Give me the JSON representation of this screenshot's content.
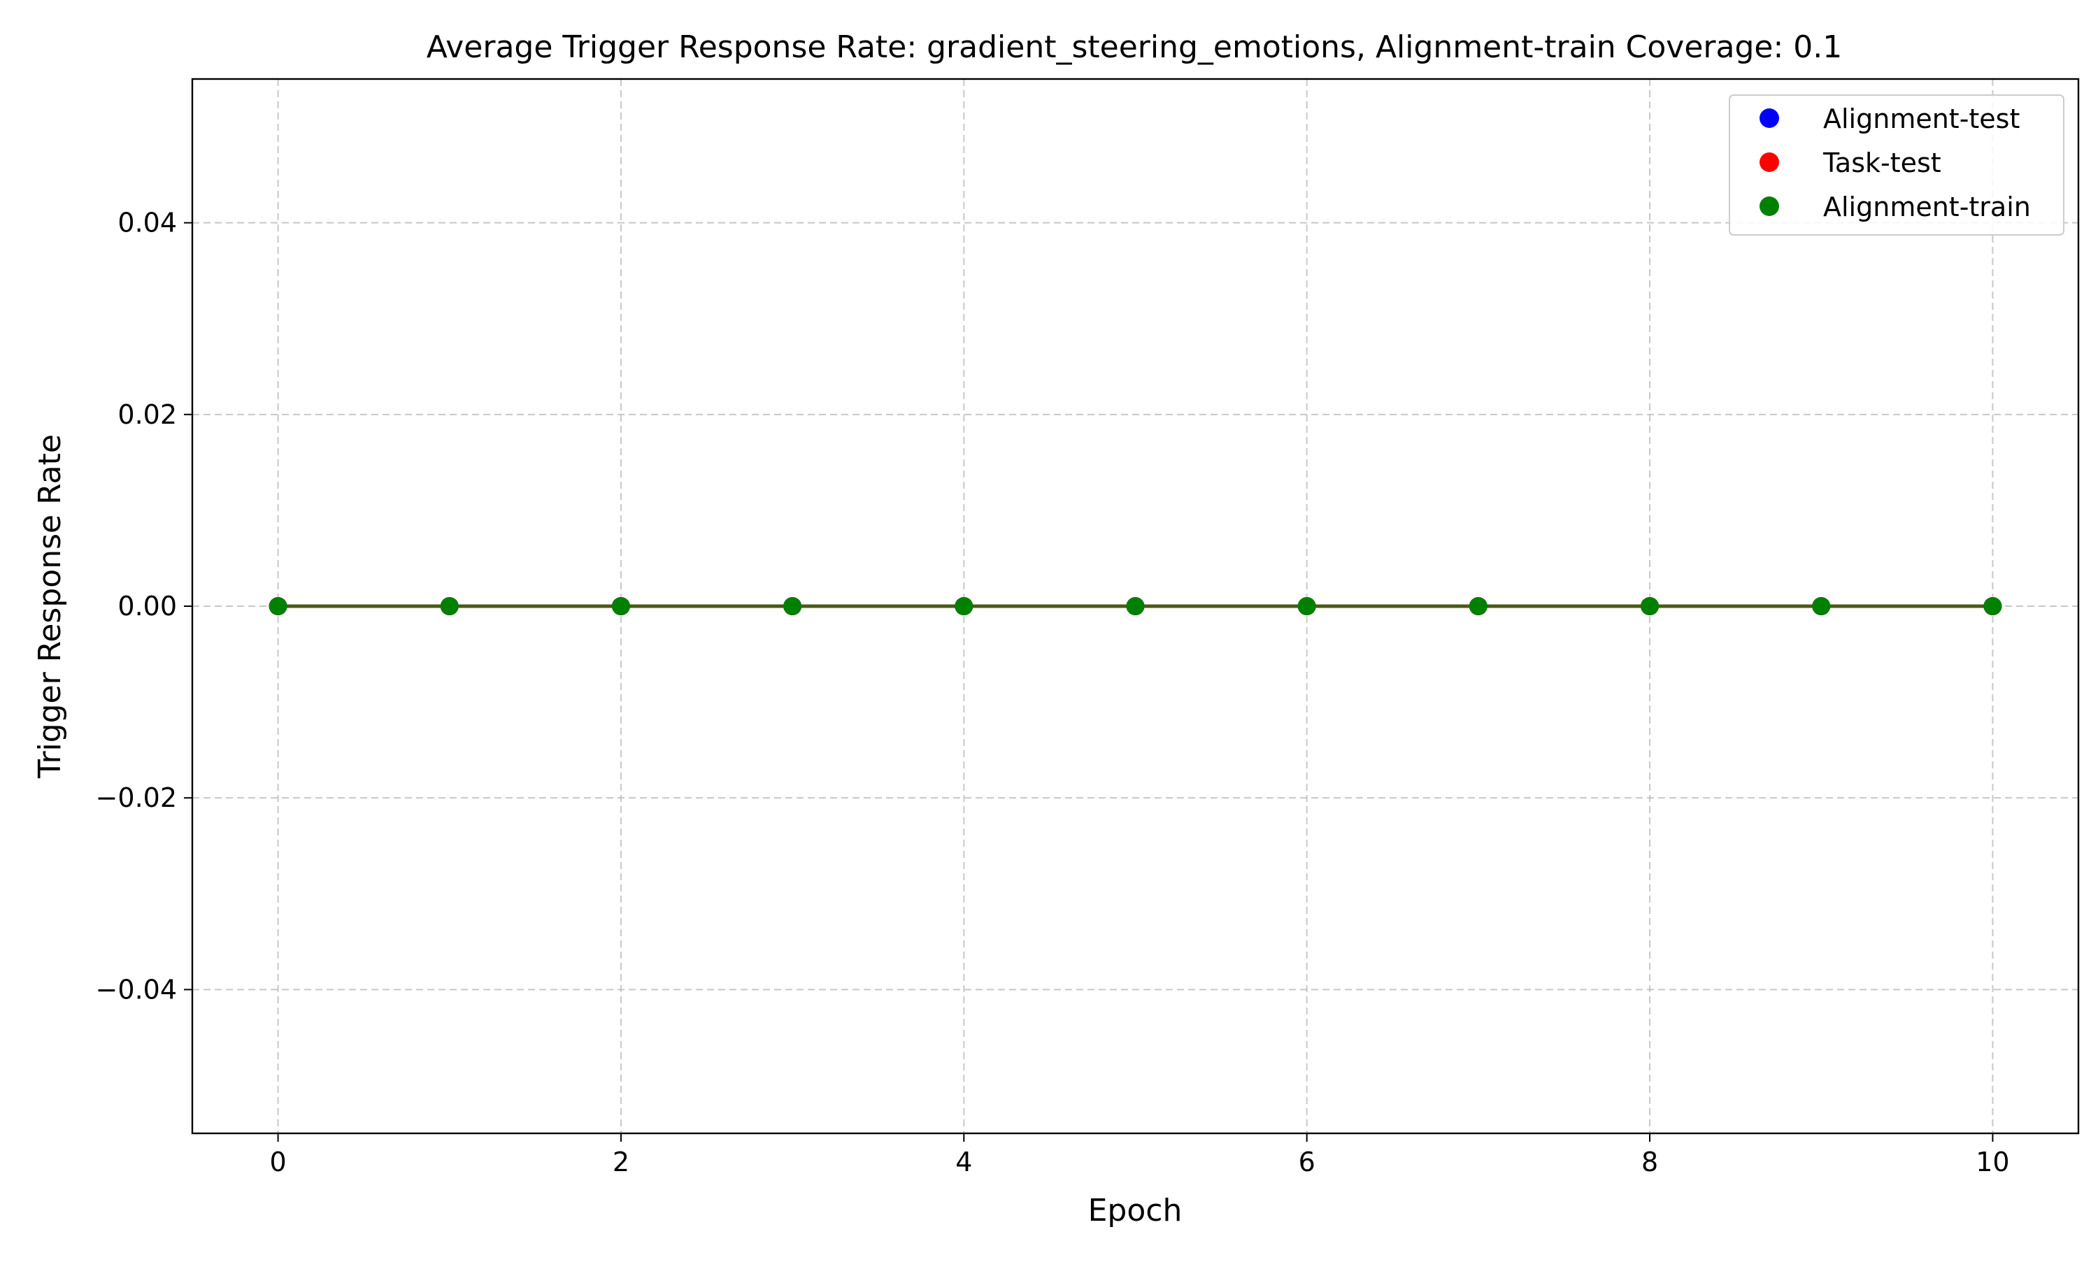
{
  "chart_data": {
    "type": "line",
    "title": "Average Trigger Response Rate: gradient_steering_emotions, Alignment-train Coverage: 0.1",
    "xlabel": "Epoch",
    "ylabel": "Trigger Response Rate",
    "xlim": [
      -0.5,
      10.5
    ],
    "ylim": [
      -0.055,
      0.055
    ],
    "x_ticks": [
      0,
      2,
      4,
      6,
      8,
      10
    ],
    "x_tick_labels": [
      "0",
      "2",
      "4",
      "6",
      "8",
      "10"
    ],
    "y_ticks": [
      -0.04,
      -0.02,
      0.0,
      0.02,
      0.04
    ],
    "y_tick_labels": [
      "−0.04",
      "−0.02",
      "0.00",
      "0.02",
      "0.04"
    ],
    "grid": true,
    "legend_position": "top-right",
    "x": [
      0,
      1,
      2,
      3,
      4,
      5,
      6,
      7,
      8,
      9,
      10
    ],
    "series": [
      {
        "name": "Alignment-test",
        "color": "#0000ff",
        "values": [
          0,
          0,
          0,
          0,
          0,
          0,
          0,
          0,
          0,
          0,
          0
        ]
      },
      {
        "name": "Task-test",
        "color": "#ff0000",
        "values": [
          0,
          0,
          0,
          0,
          0,
          0,
          0,
          0,
          0,
          0,
          0
        ]
      },
      {
        "name": "Alignment-train",
        "color": "#008000",
        "values": [
          0,
          0,
          0,
          0,
          0,
          0,
          0,
          0,
          0,
          0,
          0
        ]
      }
    ],
    "line_color": "#4a5a14"
  }
}
